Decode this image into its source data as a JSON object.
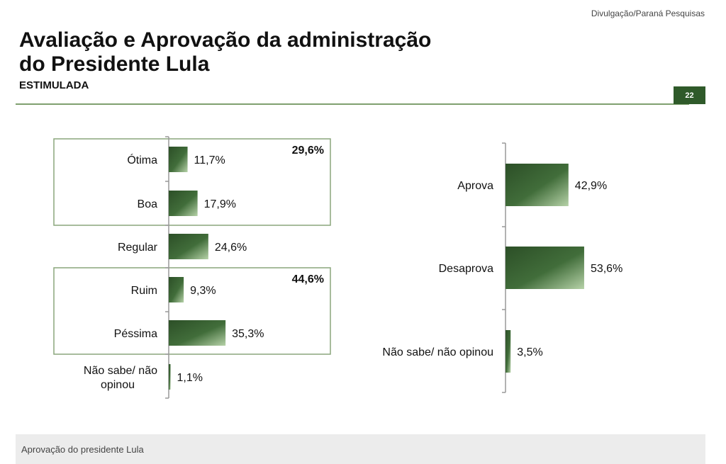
{
  "header": {
    "credit": "Divulgação/Paraná Pesquisas",
    "title": "Avaliação e Aprovação da administração\ndo Presidente Lula",
    "subtitle": "ESTIMULADA",
    "page_number": "22"
  },
  "chart_data": [
    {
      "type": "bar",
      "orientation": "horizontal",
      "categories": [
        "Ótima",
        "Boa",
        "Regular",
        "Ruim",
        "Péssima",
        "Não sabe/ não opinou"
      ],
      "values": [
        11.7,
        17.9,
        24.6,
        9.3,
        35.3,
        1.1
      ],
      "value_labels": [
        "11,7%",
        "17,9%",
        "24,6%",
        "9,3%",
        "35,3%",
        "1,1%"
      ],
      "groups": [
        {
          "members": [
            "Ótima",
            "Boa"
          ],
          "total_label": "29,6%"
        },
        {
          "members": [
            "Ruim",
            "Péssima"
          ],
          "total_label": "44,6%"
        }
      ],
      "bar_color": "#3b6335"
    },
    {
      "type": "bar",
      "orientation": "horizontal",
      "categories": [
        "Aprova",
        "Desaprova",
        "Não sabe/ não opinou"
      ],
      "values": [
        42.9,
        53.6,
        3.5
      ],
      "value_labels": [
        "42,9%",
        "53,6%",
        "3,5%"
      ],
      "bar_color": "#3b6335"
    }
  ],
  "caption": "Aprovação do presidente Lula"
}
